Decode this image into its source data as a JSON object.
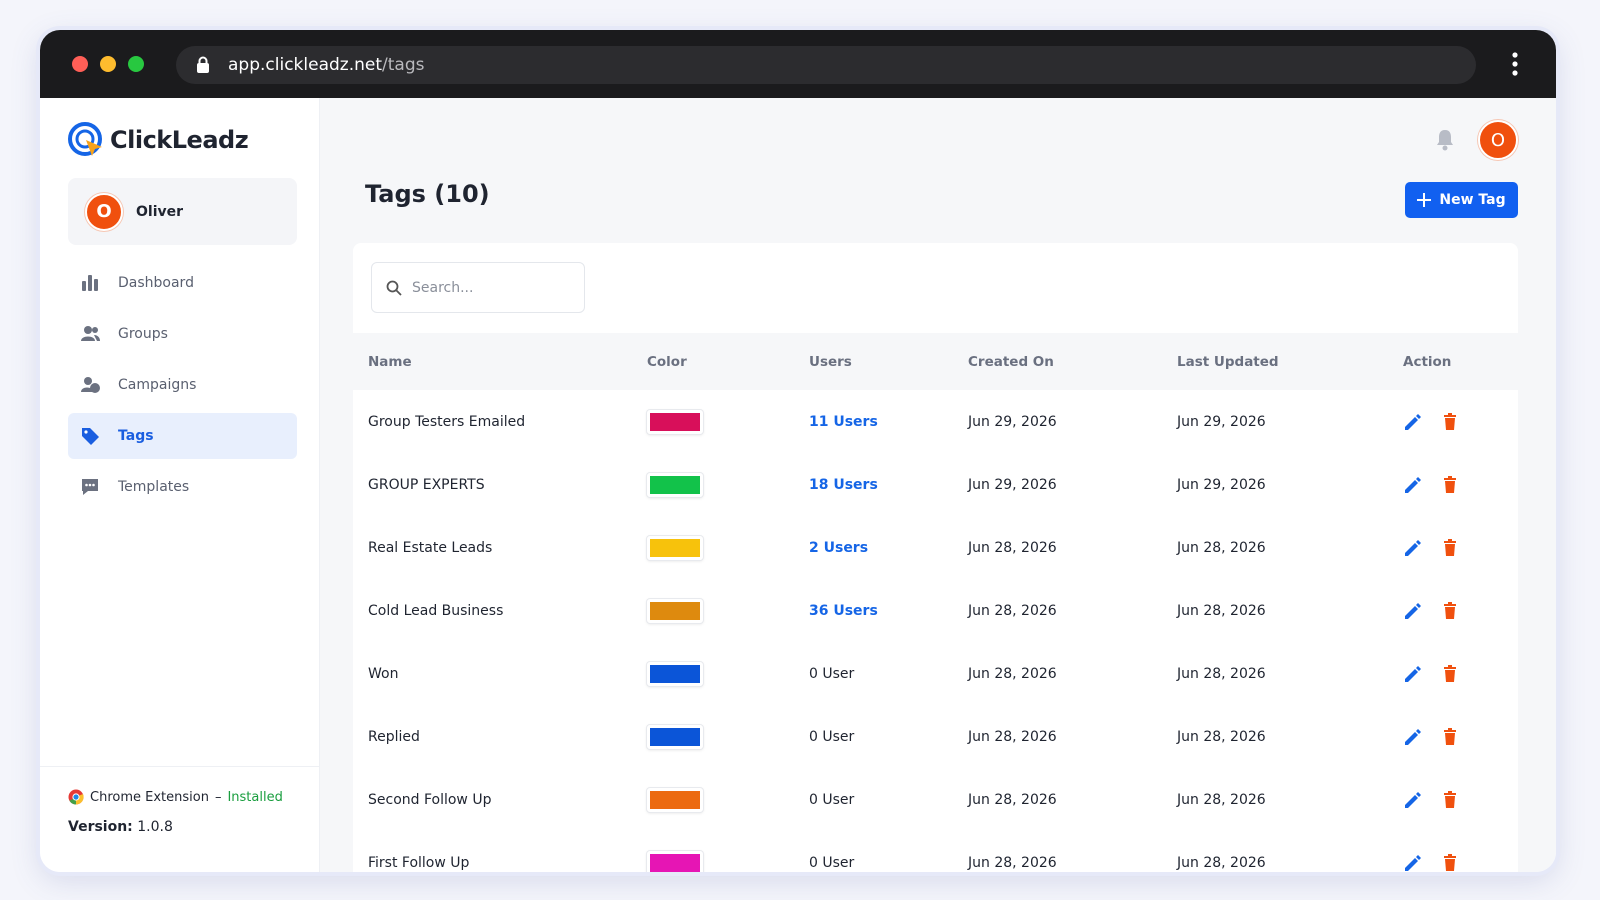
{
  "browser": {
    "url_host": "app.clickleadz.net",
    "url_path": "/tags"
  },
  "sidebar": {
    "brand": "ClickLeadz",
    "user": {
      "initial": "O",
      "name": "Oliver"
    },
    "nav": [
      {
        "label": "Dashboard",
        "active": false
      },
      {
        "label": "Groups",
        "active": false
      },
      {
        "label": "Campaigns",
        "active": false
      },
      {
        "label": "Tags",
        "active": true
      },
      {
        "label": "Templates",
        "active": false
      }
    ],
    "extension": {
      "label": "Chrome Extension",
      "separator": "–",
      "status": "Installed"
    },
    "version": {
      "label": "Version:",
      "value": "1.0.8"
    }
  },
  "header": {
    "avatar_initial": "O"
  },
  "page": {
    "title": "Tags (10)",
    "new_button": "New Tag",
    "search_placeholder": "Search..."
  },
  "table": {
    "columns": [
      "Name",
      "Color",
      "Users",
      "Created On",
      "Last Updated",
      "Action"
    ],
    "rows": [
      {
        "name": "Group Testers Emailed",
        "color": "#d80f5a",
        "users": "11 Users",
        "users_link": true,
        "created": "Jun 29, 2026",
        "updated": "Jun 29, 2026"
      },
      {
        "name": "GROUP EXPERTS",
        "color": "#12c24a",
        "users": "18 Users",
        "users_link": true,
        "created": "Jun 29, 2026",
        "updated": "Jun 29, 2026"
      },
      {
        "name": "Real Estate Leads",
        "color": "#f7c20c",
        "users": "2 Users",
        "users_link": true,
        "created": "Jun 28, 2026",
        "updated": "Jun 28, 2026"
      },
      {
        "name": "Cold Lead Business",
        "color": "#de8a0e",
        "users": "36 Users",
        "users_link": true,
        "created": "Jun 28, 2026",
        "updated": "Jun 28, 2026"
      },
      {
        "name": "Won",
        "color": "#0b55d8",
        "users": "0 User",
        "users_link": false,
        "created": "Jun 28, 2026",
        "updated": "Jun 28, 2026"
      },
      {
        "name": "Replied",
        "color": "#0b55d8",
        "users": "0 User",
        "users_link": false,
        "created": "Jun 28, 2026",
        "updated": "Jun 28, 2026"
      },
      {
        "name": "Second Follow Up",
        "color": "#ec6a10",
        "users": "0 User",
        "users_link": false,
        "created": "Jun 28, 2026",
        "updated": "Jun 28, 2026"
      },
      {
        "name": "First Follow Up",
        "color": "#e615b4",
        "users": "0 User",
        "users_link": false,
        "created": "Jun 28, 2026",
        "updated": "Jun 28, 2026"
      }
    ]
  }
}
